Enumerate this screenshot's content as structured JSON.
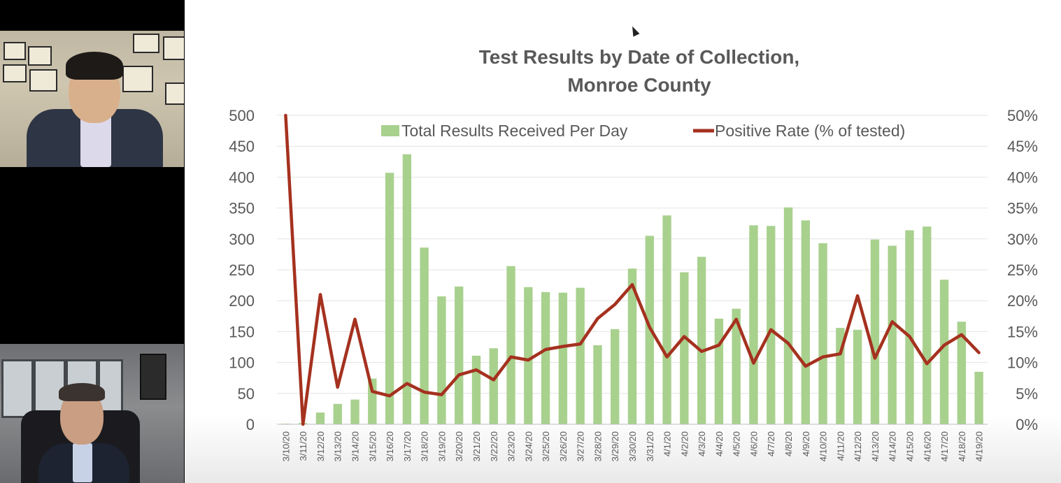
{
  "participants": [
    {
      "name": "",
      "tile": "top"
    },
    {
      "name": "",
      "tile": "bottom"
    }
  ],
  "colors": {
    "bar": "#a9d18e",
    "line": "#a5311f",
    "grid": "#e3e3e3",
    "text": "#595959"
  },
  "chart_data": {
    "type": "bar",
    "title": "Test Results by Date of Collection,",
    "subtitle": "Monroe County",
    "categories": [
      "3/10/20",
      "3/11/20",
      "3/12/20",
      "3/13/20",
      "3/14/20",
      "3/15/20",
      "3/16/20",
      "3/17/20",
      "3/18/20",
      "3/19/20",
      "3/20/20",
      "3/21/20",
      "3/22/20",
      "3/23/20",
      "3/24/20",
      "3/25/20",
      "3/26/20",
      "3/27/20",
      "3/28/20",
      "3/29/20",
      "3/30/20",
      "3/31/20",
      "4/1/20",
      "4/2/20",
      "4/3/20",
      "4/4/20",
      "4/5/20",
      "4/6/20",
      "4/7/20",
      "4/8/20",
      "4/9/20",
      "4/10/20",
      "4/11/20",
      "4/12/20",
      "4/13/20",
      "4/14/20",
      "4/15/20",
      "4/16/20",
      "4/17/20",
      "4/18/20",
      "4/19/20"
    ],
    "series": [
      {
        "name": "Total Results Received Per Day",
        "type": "bar",
        "axis": "left",
        "values": [
          1,
          2,
          19,
          33,
          40,
          74,
          407,
          437,
          286,
          207,
          223,
          111,
          123,
          256,
          222,
          214,
          213,
          221,
          128,
          154,
          252,
          305,
          338,
          246,
          271,
          171,
          187,
          322,
          321,
          351,
          330,
          293,
          156,
          153,
          299,
          289,
          314,
          320,
          234,
          166,
          85
        ]
      },
      {
        "name": "Positive Rate (% of tested)",
        "type": "line",
        "axis": "right",
        "values": [
          50,
          0,
          21,
          6,
          17,
          5.3,
          4.6,
          6.6,
          5.2,
          4.8,
          8,
          8.8,
          7.2,
          10.9,
          10.4,
          12.1,
          12.6,
          13,
          17.1,
          19.4,
          22.6,
          15.7,
          10.9,
          14.2,
          11.8,
          12.8,
          17,
          9.9,
          15.3,
          13.1,
          9.4,
          10.9,
          11.4,
          20.8,
          10.7,
          16.6,
          14.2,
          9.8,
          12.8,
          14.5,
          11.6
        ]
      }
    ],
    "left_axis": {
      "ylim": [
        0,
        500
      ],
      "ticks": [
        "0",
        "50",
        "100",
        "150",
        "200",
        "250",
        "300",
        "350",
        "400",
        "450",
        "500"
      ]
    },
    "right_axis": {
      "ylim": [
        0,
        50
      ],
      "ticks": [
        "0%",
        "5%",
        "10%",
        "15%",
        "20%",
        "25%",
        "30%",
        "35%",
        "40%",
        "45%",
        "50%"
      ]
    },
    "grid": true,
    "legend_position": "top"
  }
}
